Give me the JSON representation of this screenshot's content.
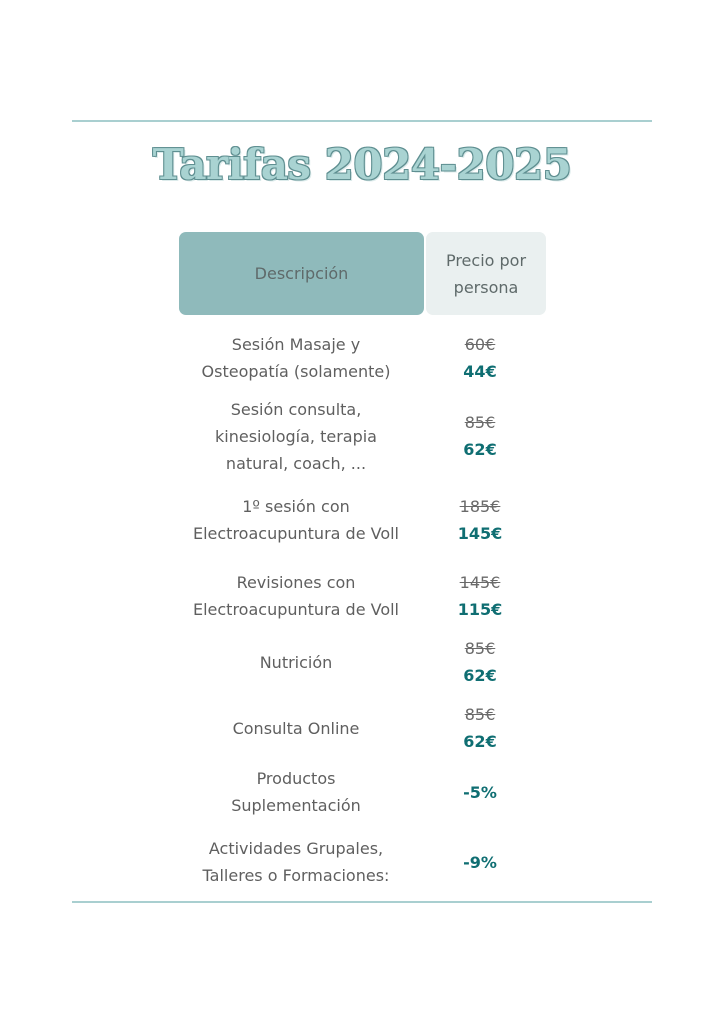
{
  "title": "Tarifas 2024-2025",
  "colors": {
    "accent": "#0f6e72",
    "header_desc_bg": "#8fbabb",
    "header_price_bg": "#eaf0f0",
    "rule": "#a9cfd0"
  },
  "header": {
    "description": "Descripción",
    "price_line1": "Precio por",
    "price_line2": "persona"
  },
  "rows": [
    {
      "desc": [
        "Sesión Masaje y",
        "Osteopatía (solamente)"
      ],
      "old": "60€",
      "new": "44€"
    },
    {
      "desc": [
        "Sesión consulta,",
        "kinesiología, terapia",
        "natural, coach, ..."
      ],
      "old": "85€",
      "new": "62€"
    },
    {
      "desc": [
        "1º sesión con",
        "Electroacupuntura de Voll"
      ],
      "old": "185€",
      "new": "145€"
    },
    {
      "desc": [
        "Revisiones con",
        "Electroacupuntura de Voll"
      ],
      "old": "145€",
      "new": "115€"
    },
    {
      "desc": [
        "Nutrición"
      ],
      "old": "85€",
      "new": "62€"
    },
    {
      "desc": [
        "Consulta Online"
      ],
      "old": "85€",
      "new": "62€"
    },
    {
      "desc": [
        "Productos",
        "Suplementación"
      ],
      "new": "-5%"
    },
    {
      "desc": [
        "Actividades Grupales,",
        "Talleres o Formaciones:"
      ],
      "new": "-9%"
    }
  ]
}
